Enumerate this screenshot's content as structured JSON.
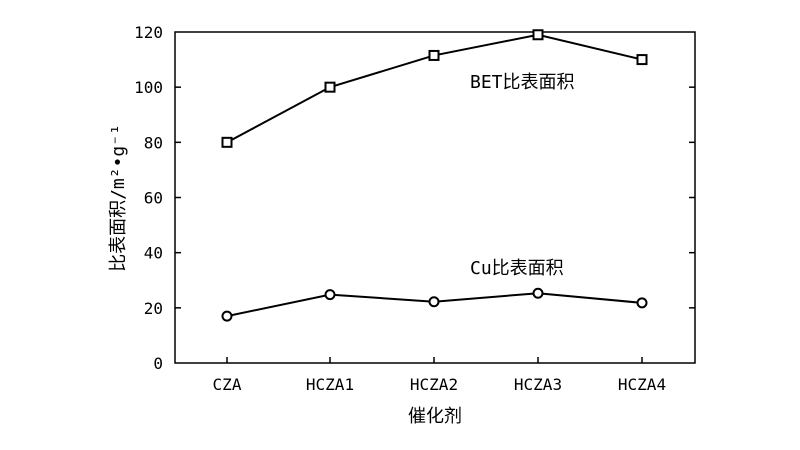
{
  "chart_data": {
    "type": "line",
    "categories": [
      "CZA",
      "HCZA1",
      "HCZA2",
      "HCZA3",
      "HCZA4"
    ],
    "series": [
      {
        "name": "BET比表面积",
        "marker": "square",
        "values": [
          80,
          100,
          111.5,
          119,
          110
        ]
      },
      {
        "name": "Cu比表面积",
        "marker": "circle",
        "values": [
          17,
          24.8,
          22.2,
          25.3,
          21.8
        ]
      }
    ],
    "xlabel": "催化剂",
    "ylabel": "比表面积/m²•g⁻¹",
    "ylim": [
      0,
      120
    ],
    "yticks": [
      0,
      20,
      40,
      60,
      80,
      100,
      120
    ],
    "grid": false
  }
}
